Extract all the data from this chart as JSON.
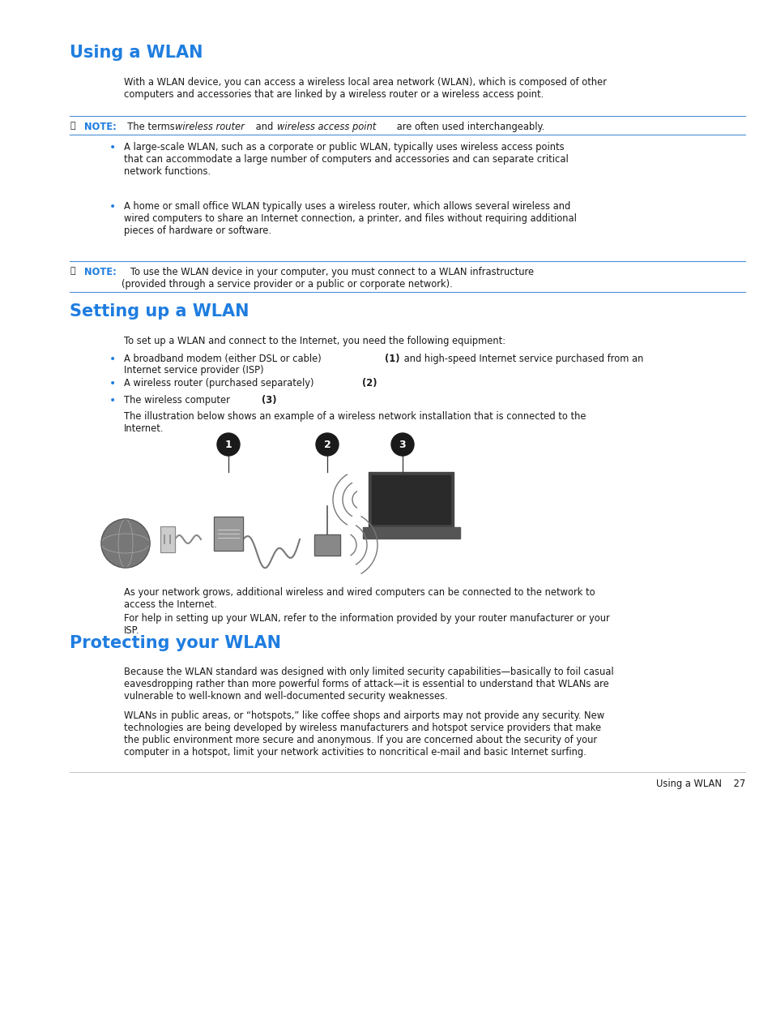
{
  "bg_color": "#ffffff",
  "heading_color": "#1f7de0",
  "text_color": "#1a1a1a",
  "note_label_color": "#1f7de0",
  "bullet_color": "#1f7de0",
  "line_color": "#4a90d9",
  "title1": "Using a WLAN",
  "title2": "Setting up a WLAN",
  "title3": "Protecting your WLAN",
  "para1": "With a WLAN device, you can access a wireless local area network (WLAN), which is composed of other\ncomputers and accessories that are linked by a wireless router or a wireless access point.",
  "note1_label": "NOTE:",
  "note1_italic1": "wireless router",
  "note1_italic2": "wireless access point",
  "note1_full": "  The terms wireless router and wireless access point are often used interchangeably.",
  "bullet1a": "A large-scale WLAN, such as a corporate or public WLAN, typically uses wireless access points\nthat can accommodate a large number of computers and accessories and can separate critical\nnetwork functions.",
  "bullet1b": "A home or small office WLAN typically uses a wireless router, which allows several wireless and\nwired computers to share an Internet connection, a printer, and files without requiring additional\npieces of hardware or software.",
  "note2_label": "NOTE:",
  "note2_text": "   To use the WLAN device in your computer, you must connect to a WLAN infrastructure\n(provided through a service provider or a public or corporate network).",
  "title2_para": "To set up a WLAN and connect to the Internet, you need the following equipment:",
  "bullet2a_norm": "A broadband modem (either DSL or cable) ",
  "bullet2a_bold": "(1)",
  "bullet2a_end": " and high-speed Internet service purchased from an",
  "bullet2a_line2": "Internet service provider (ISP)",
  "bullet2b_norm": "A wireless router (purchased separately) ",
  "bullet2b_bold": "(2)",
  "bullet2c_norm": "The wireless computer ",
  "bullet2c_bold": "(3)",
  "illus_para": "The illustration below shows an example of a wireless network installation that is connected to the\nInternet.",
  "after_illus1": "As your network grows, additional wireless and wired computers can be connected to the network to\naccess the Internet.",
  "after_illus2": "For help in setting up your WLAN, refer to the information provided by your router manufacturer or your\nISP.",
  "title3_para1": "Because the WLAN standard was designed with only limited security capabilities—basically to foil casual\neavesdropping rather than more powerful forms of attack—it is essential to understand that WLANs are\nvulnerable to well-known and well-documented security weaknesses.",
  "title3_para2": "WLANs in public areas, or “hotspots,” like coffee shops and airports may not provide any security. New\ntechnologies are being developed by wireless manufacturers and hotspot service providers that make\nthe public environment more secure and anonymous. If you are concerned about the security of your\ncomputer in a hotspot, limit your network activities to noncritical e-mail and basic Internet surfing.",
  "footer_text": "Using a WLAN    27",
  "lm": 0.09,
  "im": 0.16,
  "rm": 0.965,
  "ts": 14,
  "bs": 8.3,
  "fs": 8.3
}
